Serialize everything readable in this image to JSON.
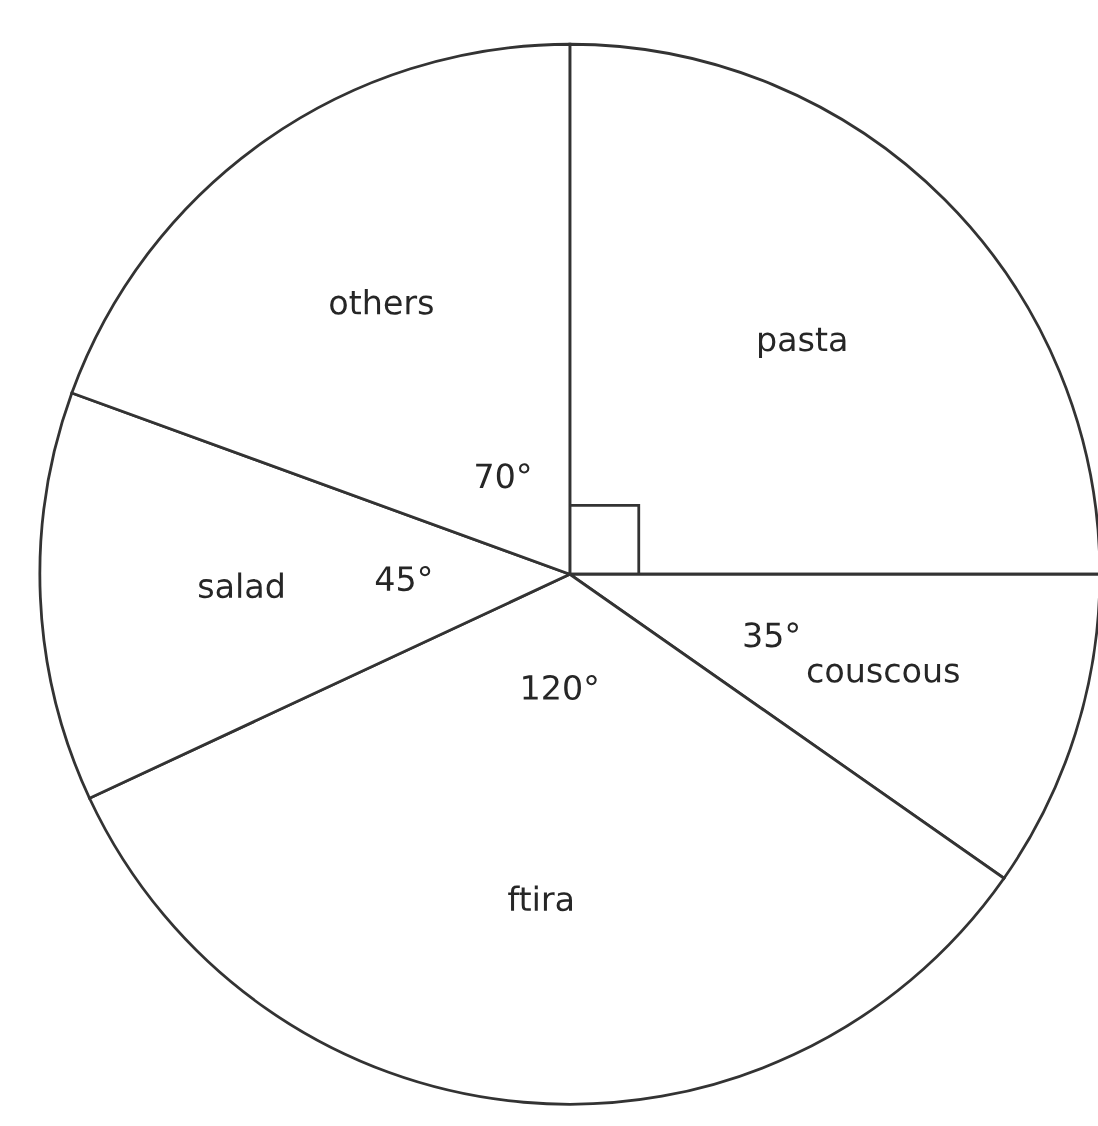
{
  "chart_data": {
    "type": "pie",
    "categories": [
      "pasta",
      "couscous",
      "ftira",
      "salad",
      "others"
    ],
    "values": [
      90,
      35,
      120,
      45,
      70
    ],
    "colors": [
      "#ffffff",
      "#ffffff",
      "#ffffff",
      "#ffffff",
      "#ffffff"
    ],
    "value_labels": [
      null,
      "35°",
      "120°",
      "45°",
      "70°"
    ]
  }
}
